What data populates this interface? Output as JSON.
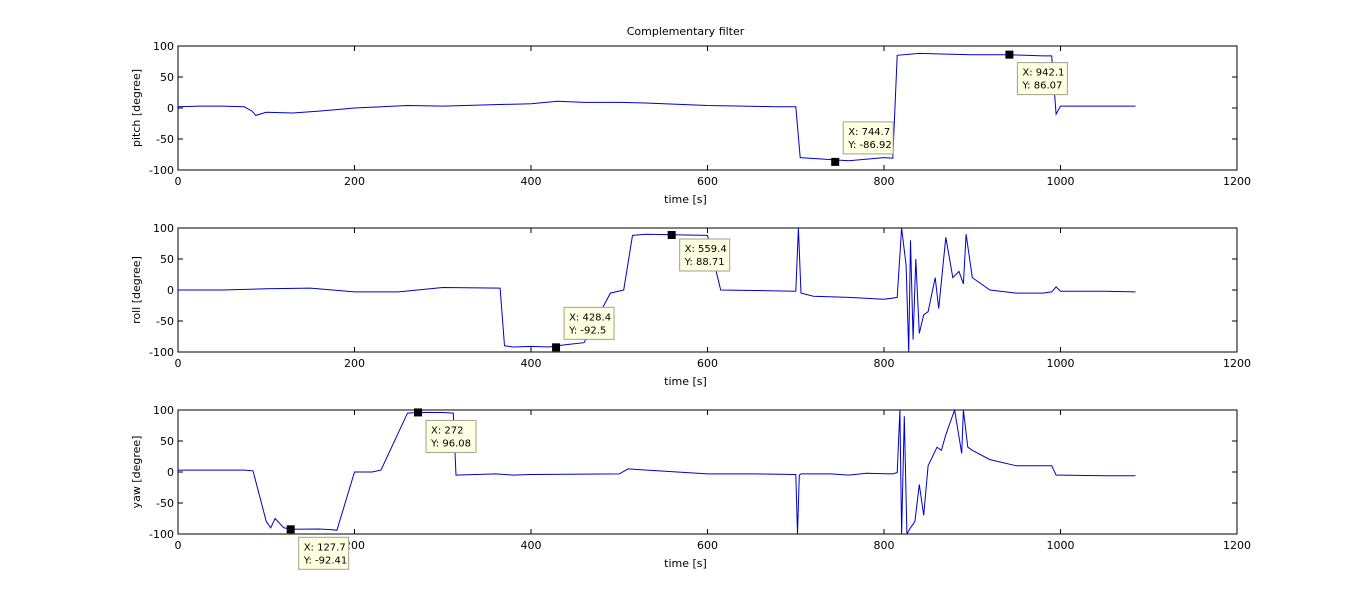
{
  "chart_data": [
    {
      "type": "line",
      "title": "Complementary filter",
      "xlabel": "time [s]",
      "ylabel": "pitch [degree]",
      "xlim": [
        0,
        1200
      ],
      "ylim": [
        -100,
        100
      ],
      "xticks": [
        "0",
        "200",
        "400",
        "600",
        "800",
        "1000",
        "1200"
      ],
      "yticks": [
        "-100",
        "-50",
        "0",
        "50",
        "100"
      ],
      "grid": false,
      "line_color": "#0000cc",
      "x": [
        0,
        25,
        50,
        75,
        84,
        88,
        100,
        130,
        160,
        200,
        260,
        300,
        350,
        400,
        430,
        460,
        500,
        530,
        600,
        640,
        680,
        700,
        705,
        760,
        800,
        810,
        815,
        840,
        870,
        900,
        940,
        960,
        980,
        990,
        995,
        1000,
        1050,
        1085
      ],
      "values": [
        2,
        3,
        3,
        2,
        -5,
        -12,
        -7,
        -8,
        -5,
        0,
        4,
        3,
        5,
        7,
        11,
        9,
        9,
        8,
        4,
        3,
        2,
        2,
        -80,
        -85,
        -80,
        -81,
        85,
        88,
        87,
        86,
        86,
        85,
        84,
        84,
        -10,
        3,
        3,
        3
      ],
      "datatips": [
        {
          "x_label": "X: 744.7",
          "y_label": "Y: -86.92",
          "x": 744.7,
          "y": -86.92
        },
        {
          "x_label": "X: 942.1",
          "y_label": "Y: 86.07",
          "x": 942.1,
          "y": 86.07
        }
      ]
    },
    {
      "type": "line",
      "title": "",
      "xlabel": "time [s]",
      "ylabel": "roll [degree]",
      "xlim": [
        0,
        1200
      ],
      "ylim": [
        -100,
        100
      ],
      "xticks": [
        "0",
        "200",
        "400",
        "600",
        "800",
        "1000",
        "1200"
      ],
      "yticks": [
        "-100",
        "-50",
        "0",
        "50",
        "100"
      ],
      "grid": false,
      "line_color": "#0000cc",
      "x": [
        0,
        50,
        100,
        150,
        200,
        250,
        300,
        365,
        370,
        380,
        400,
        420,
        440,
        460,
        490,
        505,
        515,
        530,
        560,
        600,
        615,
        700,
        703,
        706,
        720,
        760,
        800,
        815,
        820,
        825,
        828,
        830,
        833,
        836,
        840,
        845,
        850,
        858,
        862,
        870,
        878,
        885,
        890,
        893,
        900,
        920,
        950,
        980,
        990,
        995,
        1000,
        1050,
        1085
      ],
      "values": [
        0,
        0,
        2,
        3,
        -3,
        -3,
        4,
        3,
        -90,
        -92,
        -91,
        -92,
        -88,
        -85,
        -5,
        0,
        88,
        90,
        89,
        88,
        0,
        -2,
        100,
        -5,
        -10,
        -12,
        -15,
        -12,
        100,
        40,
        -100,
        80,
        -80,
        50,
        -70,
        -40,
        -35,
        20,
        -30,
        85,
        20,
        30,
        10,
        90,
        20,
        0,
        -5,
        -5,
        -3,
        5,
        -2,
        -2,
        -3
      ],
      "datatips": [
        {
          "x_label": "X: 428.4",
          "y_label": "Y: -92.5",
          "x": 428.4,
          "y": -92.5
        },
        {
          "x_label": "X: 559.4",
          "y_label": "Y: 88.71",
          "x": 559.4,
          "y": 88.71
        }
      ]
    },
    {
      "type": "line",
      "title": "",
      "xlabel": "time [s]",
      "ylabel": "yaw [degree]",
      "xlim": [
        0,
        1200
      ],
      "ylim": [
        -100,
        100
      ],
      "xticks": [
        "0",
        "200",
        "400",
        "600",
        "800",
        "1000",
        "1200"
      ],
      "yticks": [
        "-100",
        "-50",
        "0",
        "50",
        "100"
      ],
      "grid": false,
      "line_color": "#0000cc",
      "x": [
        0,
        50,
        75,
        85,
        100,
        105,
        110,
        120,
        127.7,
        160,
        175,
        180,
        200,
        220,
        230,
        260,
        272,
        300,
        312,
        315,
        360,
        380,
        400,
        500,
        510,
        600,
        650,
        700,
        702,
        704,
        706,
        740,
        760,
        780,
        810,
        815,
        818,
        820,
        823,
        826,
        830,
        835,
        840,
        845,
        850,
        860,
        865,
        870,
        880,
        888,
        890,
        895,
        900,
        920,
        950,
        980,
        990,
        995,
        1000,
        1050,
        1085
      ],
      "values": [
        3,
        3,
        3,
        2,
        -80,
        -90,
        -75,
        -90,
        -92.4,
        -92,
        -93,
        -94,
        0,
        0,
        3,
        95,
        96.08,
        96,
        95,
        -5,
        -3,
        -5,
        -4,
        -3,
        5,
        -3,
        -3,
        -4,
        -100,
        -5,
        -3,
        -3,
        -5,
        -2,
        -3,
        -1,
        100,
        -100,
        90,
        -100,
        -90,
        -80,
        -20,
        -70,
        10,
        40,
        35,
        60,
        100,
        30,
        100,
        40,
        35,
        20,
        10,
        10,
        10,
        -5,
        -5,
        -6,
        -6
      ],
      "datatips": [
        {
          "x_label": "X: 127.7",
          "y_label": "Y: -92.41",
          "x": 127.7,
          "y": -92.41
        },
        {
          "x_label": "X: 272",
          "y_label": "Y: 96.08",
          "x": 272,
          "y": 96.08
        }
      ]
    }
  ]
}
